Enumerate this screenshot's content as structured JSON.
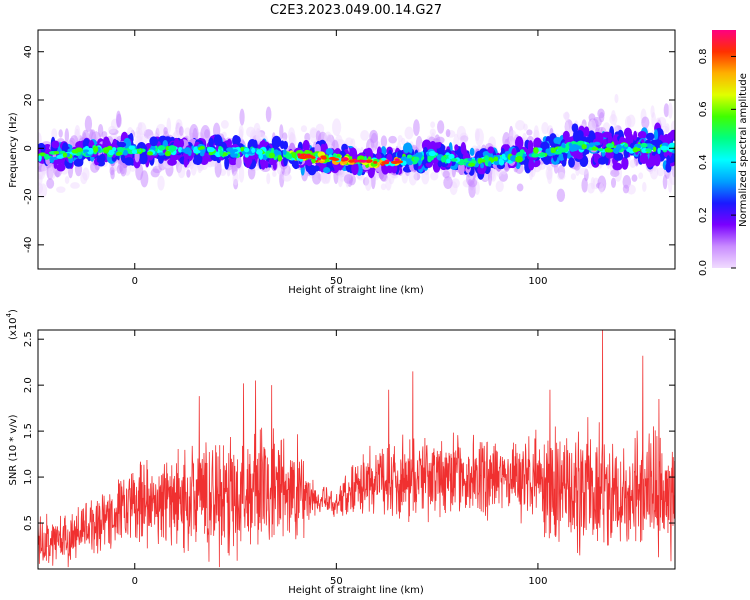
{
  "title": "C2E3.2023.049.00.14.G27",
  "chart_data": [
    {
      "type": "heatmap",
      "xlabel": "Height of straight line (km)",
      "ylabel": "Frequency (Hz)",
      "xlim": [
        -24,
        134
      ],
      "ylim": [
        -50,
        49
      ],
      "xticks": [
        0,
        50,
        100
      ],
      "yticks": [
        -40,
        -20,
        0,
        20,
        40
      ],
      "colorbar": {
        "label": "Normalized spectral amplitude",
        "range": [
          0.0,
          0.9
        ],
        "ticks": [
          "0.0",
          "0.2",
          "0.4",
          "0.6",
          "0.8"
        ],
        "colors": [
          "#f1dcff",
          "#c98cff",
          "#7a00ff",
          "#1a1aff",
          "#00a0ff",
          "#00ffff",
          "#00ff80",
          "#40ff00",
          "#e0ff00",
          "#ffb000",
          "#ff3000",
          "#ff0080"
        ]
      },
      "centerline": [
        {
          "x": -24,
          "y": -4
        },
        {
          "x": -10,
          "y": -1
        },
        {
          "x": 0,
          "y": -1
        },
        {
          "x": 20,
          "y": -1
        },
        {
          "x": 40,
          "y": -3
        },
        {
          "x": 55,
          "y": -5
        },
        {
          "x": 62,
          "y": -6
        },
        {
          "x": 75,
          "y": -3
        },
        {
          "x": 85,
          "y": -6
        },
        {
          "x": 100,
          "y": -2
        },
        {
          "x": 110,
          "y": 1
        },
        {
          "x": 120,
          "y": 0
        },
        {
          "x": 134,
          "y": 0
        }
      ]
    },
    {
      "type": "line",
      "xlabel": "Height of straight line (km)",
      "ylabel": "SNR (10 * v/v)",
      "ylabel_multiplier": "(x10",
      "ylabel_exponent": "4",
      "ylabel_close": ")",
      "xlim": [
        -24,
        134
      ],
      "ylim": [
        0,
        2.6
      ],
      "xticks": [
        0,
        50,
        100
      ],
      "yticks": [
        0.5,
        1.0,
        1.5,
        2.0,
        2.5
      ],
      "color": "#f03030",
      "series": [
        {
          "envelope": [
            {
              "x": -24,
              "mean": 0.3,
              "amp": 0.35
            },
            {
              "x": -15,
              "mean": 0.35,
              "amp": 0.35
            },
            {
              "x": -10,
              "mean": 0.5,
              "amp": 0.4
            },
            {
              "x": 0,
              "mean": 0.7,
              "amp": 0.5
            },
            {
              "x": 10,
              "mean": 0.75,
              "amp": 0.6
            },
            {
              "x": 20,
              "mean": 0.8,
              "amp": 0.85
            },
            {
              "x": 30,
              "mean": 0.85,
              "amp": 0.85
            },
            {
              "x": 40,
              "mean": 0.85,
              "amp": 0.75
            },
            {
              "x": 45,
              "mean": 0.75,
              "amp": 0.2
            },
            {
              "x": 50,
              "mean": 0.7,
              "amp": 0.2
            },
            {
              "x": 55,
              "mean": 0.95,
              "amp": 0.4
            },
            {
              "x": 65,
              "mean": 1.0,
              "amp": 0.55
            },
            {
              "x": 80,
              "mean": 1.0,
              "amp": 0.5
            },
            {
              "x": 100,
              "mean": 1.0,
              "amp": 0.55
            },
            {
              "x": 103,
              "mean": 0.85,
              "amp": 0.75
            },
            {
              "x": 115,
              "mean": 0.85,
              "amp": 0.85
            },
            {
              "x": 134,
              "mean": 0.8,
              "amp": 0.8
            }
          ],
          "peaks": [
            {
              "x": 16,
              "y": 1.88
            },
            {
              "x": 27,
              "y": 2.02
            },
            {
              "x": 30,
              "y": 2.05
            },
            {
              "x": 34,
              "y": 2.0
            },
            {
              "x": 63,
              "y": 1.95
            },
            {
              "x": 69,
              "y": 2.15
            },
            {
              "x": 103,
              "y": 1.95
            },
            {
              "x": 116,
              "y": 2.6
            },
            {
              "x": 126,
              "y": 2.32
            },
            {
              "x": 130,
              "y": 1.85
            }
          ]
        }
      ]
    }
  ]
}
